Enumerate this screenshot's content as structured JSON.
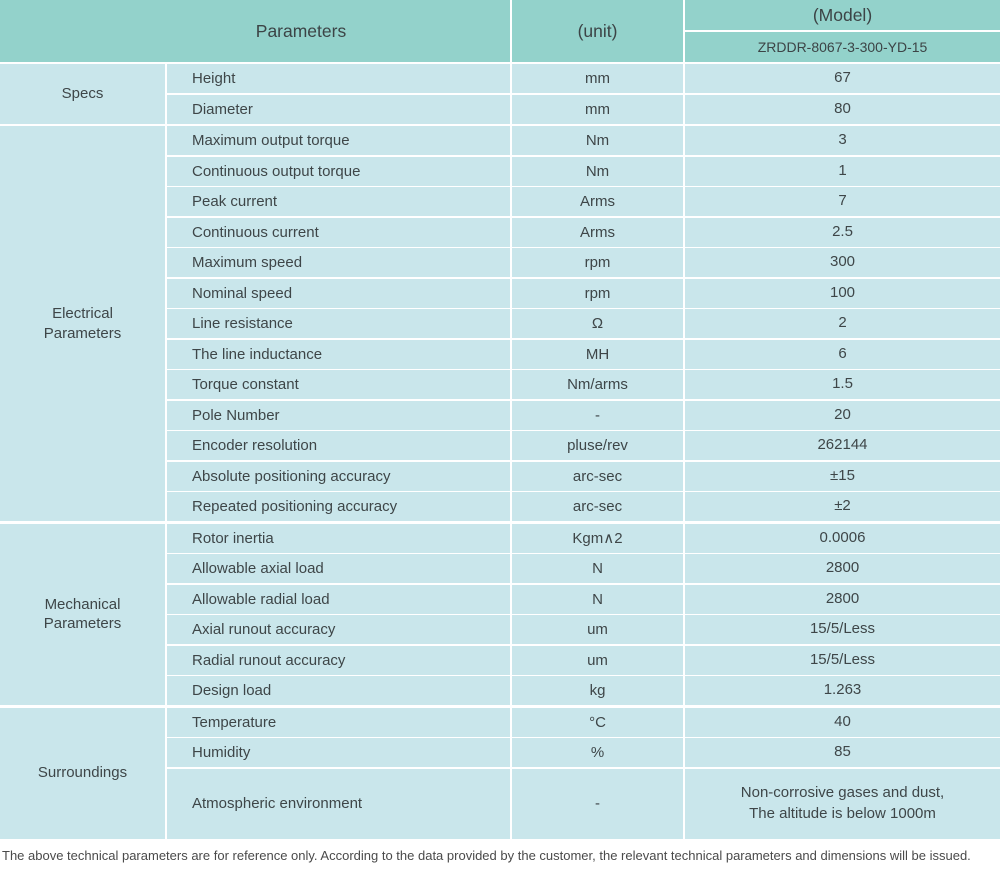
{
  "table": {
    "header": {
      "parameters": "Parameters",
      "unit": "(unit)",
      "model": "(Model)",
      "model_number": "ZRDDR-8067-3-300-YD-15"
    },
    "sections": [
      {
        "group": "Specs",
        "rows": [
          {
            "param": "Height",
            "unit": "mm",
            "value": "67"
          },
          {
            "param": "Diameter",
            "unit": "mm",
            "value": "80"
          }
        ]
      },
      {
        "group": "Electrical Parameters",
        "rows": [
          {
            "param": "Maximum output torque",
            "unit": "Nm",
            "value": "3"
          },
          {
            "param": "Continuous output torque",
            "unit": "Nm",
            "value": "1"
          },
          {
            "param": "Peak current",
            "unit": "Arms",
            "value": "7"
          },
          {
            "param": "Continuous current",
            "unit": "Arms",
            "value": "2.5"
          },
          {
            "param": "Maximum speed",
            "unit": "rpm",
            "value": "300"
          },
          {
            "param": "Nominal speed",
            "unit": "rpm",
            "value": "100"
          },
          {
            "param": "Line resistance",
            "unit": "Ω",
            "value": "2"
          },
          {
            "param": "The line inductance",
            "unit": "MH",
            "value": "6"
          },
          {
            "param": "Torque constant",
            "unit": "Nm/arms",
            "value": "1.5"
          },
          {
            "param": "Pole Number",
            "unit": "-",
            "value": "20"
          },
          {
            "param": "Encoder resolution",
            "unit": "pluse/rev",
            "value": "262144"
          },
          {
            "param": "Absolute positioning accuracy",
            "unit": "arc-sec",
            "value": "±15"
          },
          {
            "param": "Repeated positioning accuracy",
            "unit": "arc-sec",
            "value": "±2"
          }
        ]
      },
      {
        "group": "Mechanical Parameters",
        "rows": [
          {
            "param": "Rotor inertia",
            "unit": "Kgm∧2",
            "value": "0.0006"
          },
          {
            "param": "Allowable axial load",
            "unit": "N",
            "value": "2800"
          },
          {
            "param": "Allowable radial load",
            "unit": "N",
            "value": "2800"
          },
          {
            "param": "Axial runout accuracy",
            "unit": "um",
            "value": "15/5/Less"
          },
          {
            "param": "Radial runout accuracy",
            "unit": "um",
            "value": "15/5/Less"
          },
          {
            "param": "Design load",
            "unit": "kg",
            "value": "1.263"
          }
        ]
      },
      {
        "group": "Surroundings",
        "rows": [
          {
            "param": "Temperature",
            "unit": "°C",
            "value": "40"
          },
          {
            "param": "Humidity",
            "unit": "%",
            "value": "85"
          },
          {
            "param": "Atmospheric environment",
            "unit": "-",
            "tall": true,
            "value_lines": [
              "Non-corrosive gases and dust,",
              "The altitude is below 1000m"
            ]
          }
        ]
      }
    ]
  },
  "footnote": "The above technical parameters are for reference only. According to the data provided by the customer, the relevant technical parameters and dimensions will be issued.",
  "colors": {
    "header_teal": "#93d2cb",
    "row_blue": "#c9e6eb",
    "separator": "#ffffff",
    "text": "#3e4648"
  }
}
